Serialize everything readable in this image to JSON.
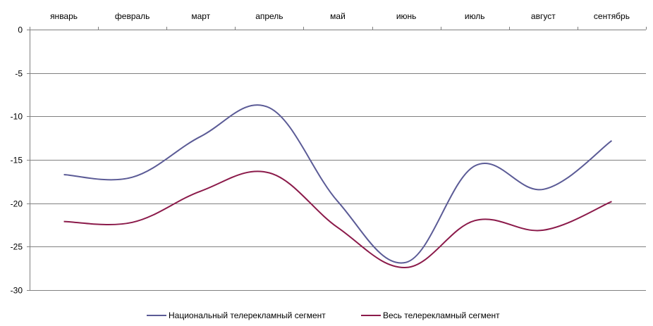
{
  "chart_data": {
    "type": "line",
    "title": "",
    "xlabel": "",
    "ylabel": "",
    "categories": [
      "январь",
      "февраль",
      "март",
      "апрель",
      "май",
      "июнь",
      "июль",
      "август",
      "сентябрь"
    ],
    "ylim": [
      -30,
      0
    ],
    "yticks": [
      0,
      -5,
      -10,
      -15,
      -20,
      -25,
      -30
    ],
    "x_axis_position": "top",
    "grid": true,
    "legend_position": "bottom",
    "series": [
      {
        "name": "Национальный телерекламный сегмент",
        "color": "#5b5b96",
        "values": [
          -16.7,
          -17.0,
          -12.3,
          -9.0,
          -19.8,
          -26.8,
          -15.7,
          -18.4,
          -12.8
        ]
      },
      {
        "name": "Весь телерекламный сегмент",
        "color": "#8b1a4a",
        "values": [
          -22.1,
          -22.2,
          -18.6,
          -16.5,
          -22.8,
          -27.4,
          -22.0,
          -23.1,
          -19.8
        ]
      }
    ]
  }
}
